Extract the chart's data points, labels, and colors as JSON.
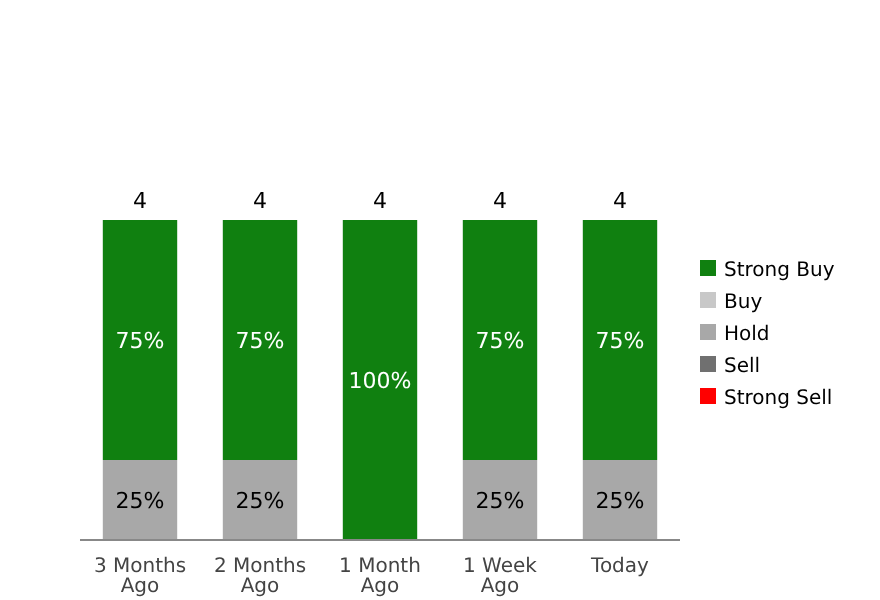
{
  "chart_data": {
    "type": "bar",
    "stacked": true,
    "categories": [
      "3 Months Ago",
      "2 Months Ago",
      "1 Month Ago",
      "1 Week Ago",
      "Today"
    ],
    "series": [
      {
        "name": "Strong Sell",
        "color": "#ff0000",
        "values": [
          null,
          null,
          null,
          null,
          null
        ]
      },
      {
        "name": "Sell",
        "color": "#707070",
        "values": [
          null,
          null,
          null,
          null,
          null
        ]
      },
      {
        "name": "Hold",
        "color": "#a8a8a8",
        "values": [
          25,
          25,
          null,
          25,
          25
        ],
        "value_labels": [
          "25%",
          "25%",
          null,
          "25%",
          "25%"
        ]
      },
      {
        "name": "Buy",
        "color": "#c8c8c8",
        "values": [
          null,
          null,
          null,
          null,
          null
        ]
      },
      {
        "name": "Strong Buy",
        "color": "#108010",
        "values": [
          75,
          75,
          100,
          75,
          75
        ],
        "value_labels": [
          "75%",
          "75%",
          "100%",
          "75%",
          "75%"
        ]
      }
    ],
    "annotations": [
      {
        "text": "4",
        "x": "3 Months Ago",
        "y": 100
      },
      {
        "text": "4",
        "x": "2 Months Ago",
        "y": 100
      },
      {
        "text": "4",
        "x": "1 Month Ago",
        "y": 100
      },
      {
        "text": "4",
        "x": "1 Week Ago",
        "y": 100
      },
      {
        "text": "4",
        "x": "Today",
        "y": 100
      }
    ],
    "tick_labels": "x",
    "legend": "right"
  }
}
